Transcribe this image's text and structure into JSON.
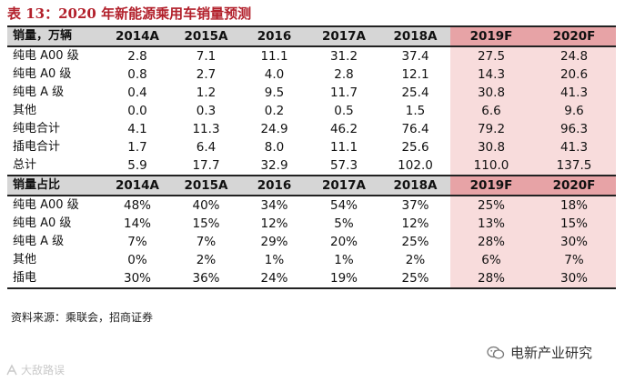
{
  "title": "表 13：2020 年新能源乘用车销量预测",
  "table1": {
    "header": [
      "销量，万辆",
      "2014A",
      "2015A",
      "2016",
      "2017A",
      "2018A",
      "2019F",
      "2020F"
    ],
    "rows": [
      [
        "纯电 A00 级",
        "2.8",
        "7.1",
        "11.1",
        "31.2",
        "37.4",
        "27.5",
        "24.8"
      ],
      [
        "纯电 A0 级",
        "0.8",
        "2.7",
        "4.0",
        "2.8",
        "12.1",
        "14.3",
        "20.6"
      ],
      [
        "纯电 A 级",
        "0.4",
        "1.2",
        "9.5",
        "11.7",
        "25.4",
        "30.8",
        "41.3"
      ],
      [
        "其他",
        "0.0",
        "0.3",
        "0.2",
        "0.5",
        "1.5",
        "6.6",
        "9.6"
      ],
      [
        "纯电合计",
        "4.1",
        "11.3",
        "24.9",
        "46.2",
        "76.4",
        "79.2",
        "96.3"
      ],
      [
        "插电合计",
        "1.7",
        "6.4",
        "8.0",
        "11.1",
        "25.6",
        "30.8",
        "41.3"
      ],
      [
        "总计",
        "5.9",
        "17.7",
        "32.9",
        "57.3",
        "102.0",
        "110.0",
        "137.5"
      ]
    ]
  },
  "table2": {
    "header": [
      "销量占比",
      "2014A",
      "2015A",
      "2016",
      "2017A",
      "2018A",
      "2019F",
      "2020F"
    ],
    "rows": [
      [
        "纯电 A00 级",
        "48%",
        "40%",
        "34%",
        "54%",
        "37%",
        "25%",
        "18%"
      ],
      [
        "纯电 A0 级",
        "14%",
        "15%",
        "12%",
        "5%",
        "12%",
        "13%",
        "15%"
      ],
      [
        "纯电 A 级",
        "7%",
        "7%",
        "29%",
        "20%",
        "25%",
        "28%",
        "30%"
      ],
      [
        "其他",
        "0%",
        "2%",
        "1%",
        "1%",
        "2%",
        "6%",
        "7%"
      ],
      [
        "插电",
        "30%",
        "36%",
        "24%",
        "19%",
        "25%",
        "28%",
        "30%"
      ]
    ]
  },
  "source": "资料来源：乘联会，招商证券",
  "brand": "电新产业研究",
  "watermark": "大敌路误",
  "icons": {
    "brand": "wechat-icon",
    "watermark": "logo-icon"
  }
}
